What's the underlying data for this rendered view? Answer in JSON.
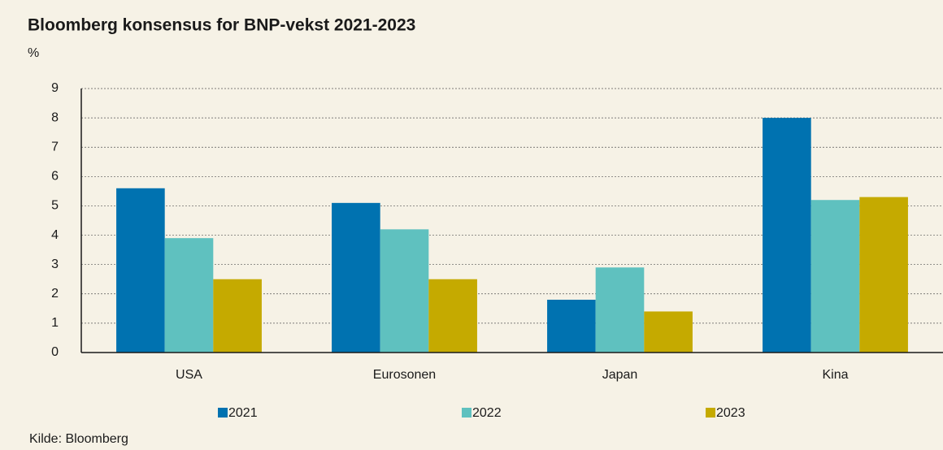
{
  "chart_data": {
    "type": "bar",
    "title": "Bloomberg konsensus for BNP-vekst 2021-2023",
    "y_label": "%",
    "categories": [
      "USA",
      "Eurosonen",
      "Japan",
      "Kina"
    ],
    "series": [
      {
        "name": "2021",
        "color": "#0072b0",
        "values": [
          5.6,
          5.1,
          1.8,
          8.0
        ]
      },
      {
        "name": "2022",
        "color": "#5fc1bf",
        "values": [
          3.9,
          4.2,
          2.9,
          5.2
        ]
      },
      {
        "name": "2023",
        "color": "#c5aa00",
        "values": [
          2.5,
          2.5,
          1.4,
          5.3
        ]
      }
    ],
    "ylim": [
      0,
      9
    ],
    "yticks": [
      0,
      1,
      2,
      3,
      4,
      5,
      6,
      7,
      8,
      9
    ],
    "grid": true,
    "source": "Kilde: Bloomberg"
  }
}
